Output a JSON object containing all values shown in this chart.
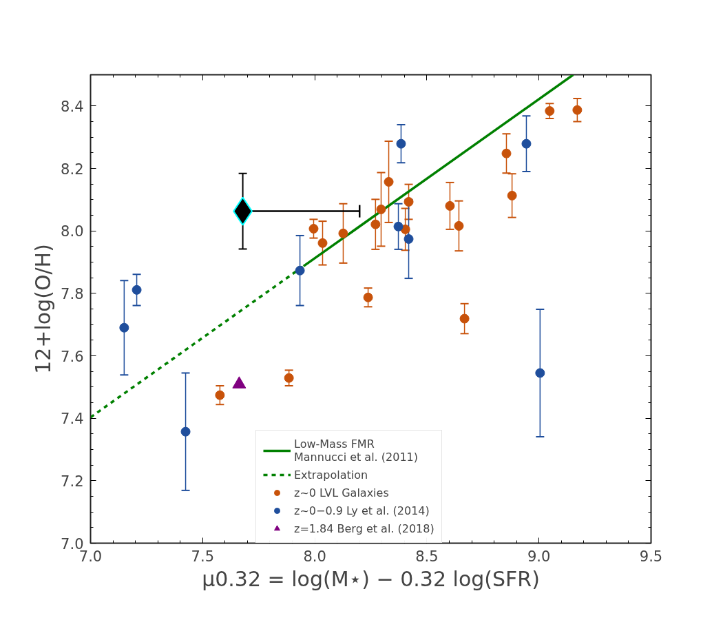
{
  "chart_data": {
    "type": "scatter",
    "xlabel": "μ0.32 = log(M⋆) − 0.32 log(SFR)",
    "ylabel": "12+log(O/H)",
    "xlim": [
      7.0,
      9.5
    ],
    "ylim": [
      7.0,
      8.5
    ],
    "xticks": [
      {
        "value": 7.0,
        "label": "7.0"
      },
      {
        "value": 7.5,
        "label": "7.5"
      },
      {
        "value": 8.0,
        "label": "8.0"
      },
      {
        "value": 8.5,
        "label": "8.5"
      },
      {
        "value": 9.0,
        "label": "9.0"
      },
      {
        "value": 9.5,
        "label": "9.5"
      }
    ],
    "yticks": [
      {
        "value": 7.0,
        "label": "7.0"
      },
      {
        "value": 7.2,
        "label": "7.2"
      },
      {
        "value": 7.4,
        "label": "7.4"
      },
      {
        "value": 7.6,
        "label": "7.6"
      },
      {
        "value": 7.8,
        "label": "7.8"
      },
      {
        "value": 8.0,
        "label": "8.0"
      },
      {
        "value": 8.2,
        "label": "8.2"
      },
      {
        "value": 8.4,
        "label": "8.4"
      }
    ],
    "grid": false,
    "legend": "bottom",
    "series": [
      {
        "name": "Low-Mass FMR\nMannucci et al. (2011)",
        "type": "line",
        "line_style": "solid",
        "color": "#008000",
        "x": [
          7.95,
          9.153
        ],
        "values": [
          7.887,
          8.5
        ]
      },
      {
        "name": "Extrapolation",
        "type": "line",
        "line_style": "dashed",
        "color": "#008000",
        "x": [
          7.0,
          7.95
        ],
        "values": [
          7.403,
          7.887
        ]
      },
      {
        "name": "z~0 LVL Galaxies",
        "marker": "circle",
        "color": "#c8520a",
        "x": [
          7.577,
          7.885,
          7.995,
          8.035,
          8.127,
          8.238,
          8.271,
          8.296,
          8.33,
          8.404,
          8.419,
          8.603,
          8.643,
          8.668,
          8.855,
          8.88,
          9.048,
          9.171
        ],
        "values": [
          7.474,
          7.529,
          8.007,
          7.961,
          7.992,
          7.787,
          8.021,
          8.069,
          8.157,
          8.005,
          8.093,
          8.08,
          8.016,
          7.719,
          8.248,
          8.113,
          8.384,
          8.387
        ],
        "errors": [
          0.03,
          0.025,
          0.03,
          0.07,
          0.095,
          0.03,
          0.08,
          0.118,
          0.13,
          0.067,
          0.056,
          0.075,
          0.08,
          0.048,
          0.063,
          0.07,
          0.024,
          0.037
        ]
      },
      {
        "name": "z~0−0.9 Ly et al. (2014)",
        "marker": "circle",
        "color": "#1f4e9c",
        "x": [
          7.15,
          7.206,
          7.424,
          7.934,
          8.385,
          8.373,
          8.419,
          8.944,
          9.005
        ],
        "values": [
          7.69,
          7.811,
          7.357,
          7.873,
          8.279,
          8.014,
          7.974,
          8.279,
          7.545
        ],
        "errors": [
          0.151,
          0.05,
          0.188,
          0.112,
          0.061,
          0.073,
          0.126,
          0.089,
          0.204
        ]
      },
      {
        "name": "z=1.84 Berg et al. (2018)",
        "marker": "triangle",
        "color": "#800080",
        "x": [
          7.663
        ],
        "values": [
          7.509
        ]
      },
      {
        "marker": "diamond",
        "color": "#000000",
        "x": [
          7.679
        ],
        "values": [
          8.063
        ],
        "errors": [
          0.121
        ],
        "xerrors": [
          [
            7.679,
            8.2
          ]
        ]
      }
    ]
  }
}
